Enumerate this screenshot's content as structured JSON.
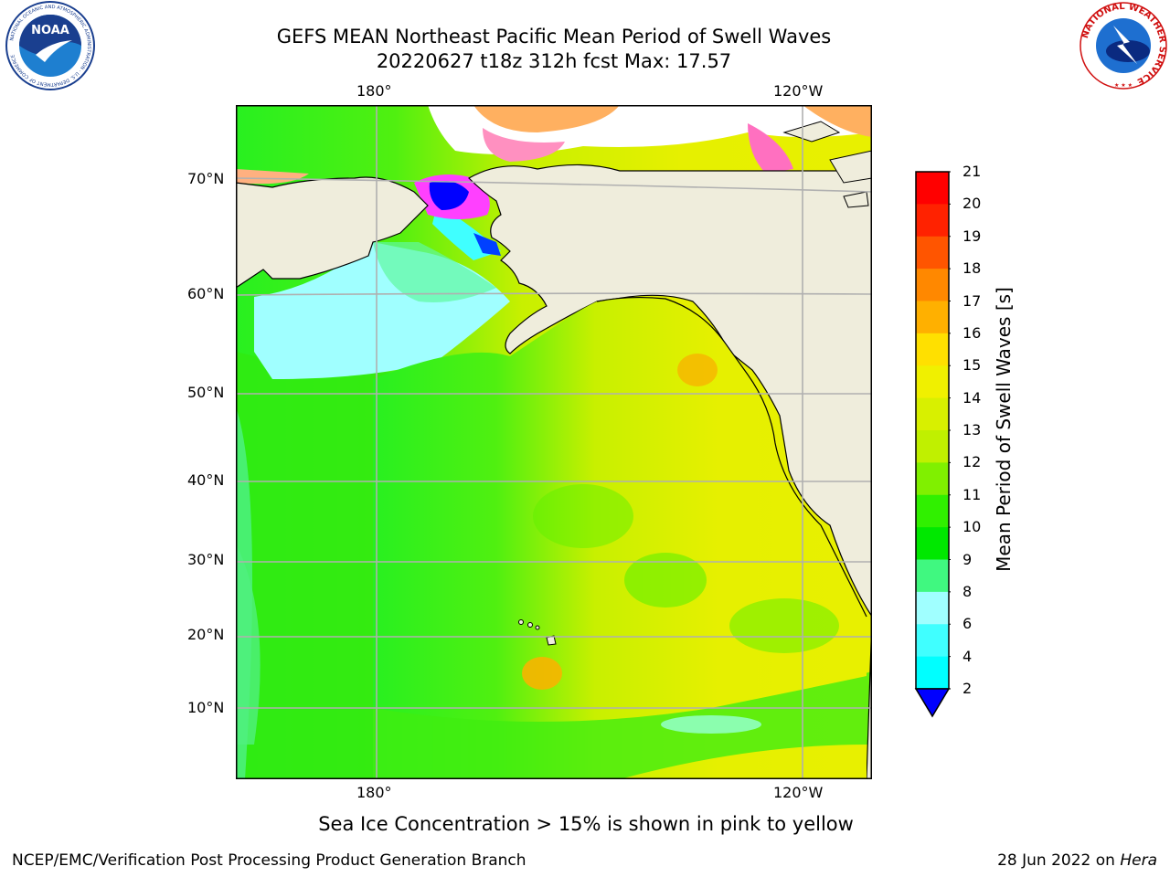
{
  "header": {
    "title_line1": "GEFS MEAN Northeast Pacific Mean Period of Swell Waves",
    "title_line2": "20220627 t18z 312h fcst   Max: 17.57"
  },
  "logos": {
    "noaa_text": "NOAA",
    "noaa_ring_text": "NATIONAL OCEANIC AND ATMOSPHERIC ADMINISTRATION · U.S. DEPARTMENT OF COMMERCE",
    "nws_ring_text": "NATIONAL WEATHER SERVICE"
  },
  "map": {
    "lon_ticks_top": [
      "180°",
      "120°W"
    ],
    "lon_ticks_bottom": [
      "180°",
      "120°W"
    ],
    "lat_ticks": [
      "70°N",
      "60°N",
      "50°N",
      "40°N",
      "30°N",
      "20°N",
      "10°N"
    ],
    "colors": {
      "land": "#efeddc",
      "coast": "#000000",
      "grid": "#b0b0b0"
    }
  },
  "colorbar": {
    "title": "Mean Period of Swell Waves [s]",
    "labels": [
      "21",
      "20",
      "19",
      "18",
      "17",
      "16",
      "15",
      "14",
      "13",
      "12",
      "11",
      "10",
      "9",
      "8",
      "6",
      "4",
      "2"
    ],
    "colors": [
      "#ff0000",
      "#ff2200",
      "#ff5500",
      "#ff8800",
      "#ffb000",
      "#ffe000",
      "#f0f000",
      "#d8f000",
      "#c0f000",
      "#80f000",
      "#30f000",
      "#00e800",
      "#40f880",
      "#a0ffff",
      "#40ffff",
      "#00ffff",
      "#0080ff",
      "#0000ff"
    ],
    "under_color": "#0000ff"
  },
  "caption": "Sea Ice Concentration > 15% is shown in pink to yellow",
  "footer": {
    "left": "NCEP/EMC/Verification Post Processing Product Generation Branch",
    "right_prefix": "28 Jun 2022 on ",
    "right_host": "Hera"
  }
}
